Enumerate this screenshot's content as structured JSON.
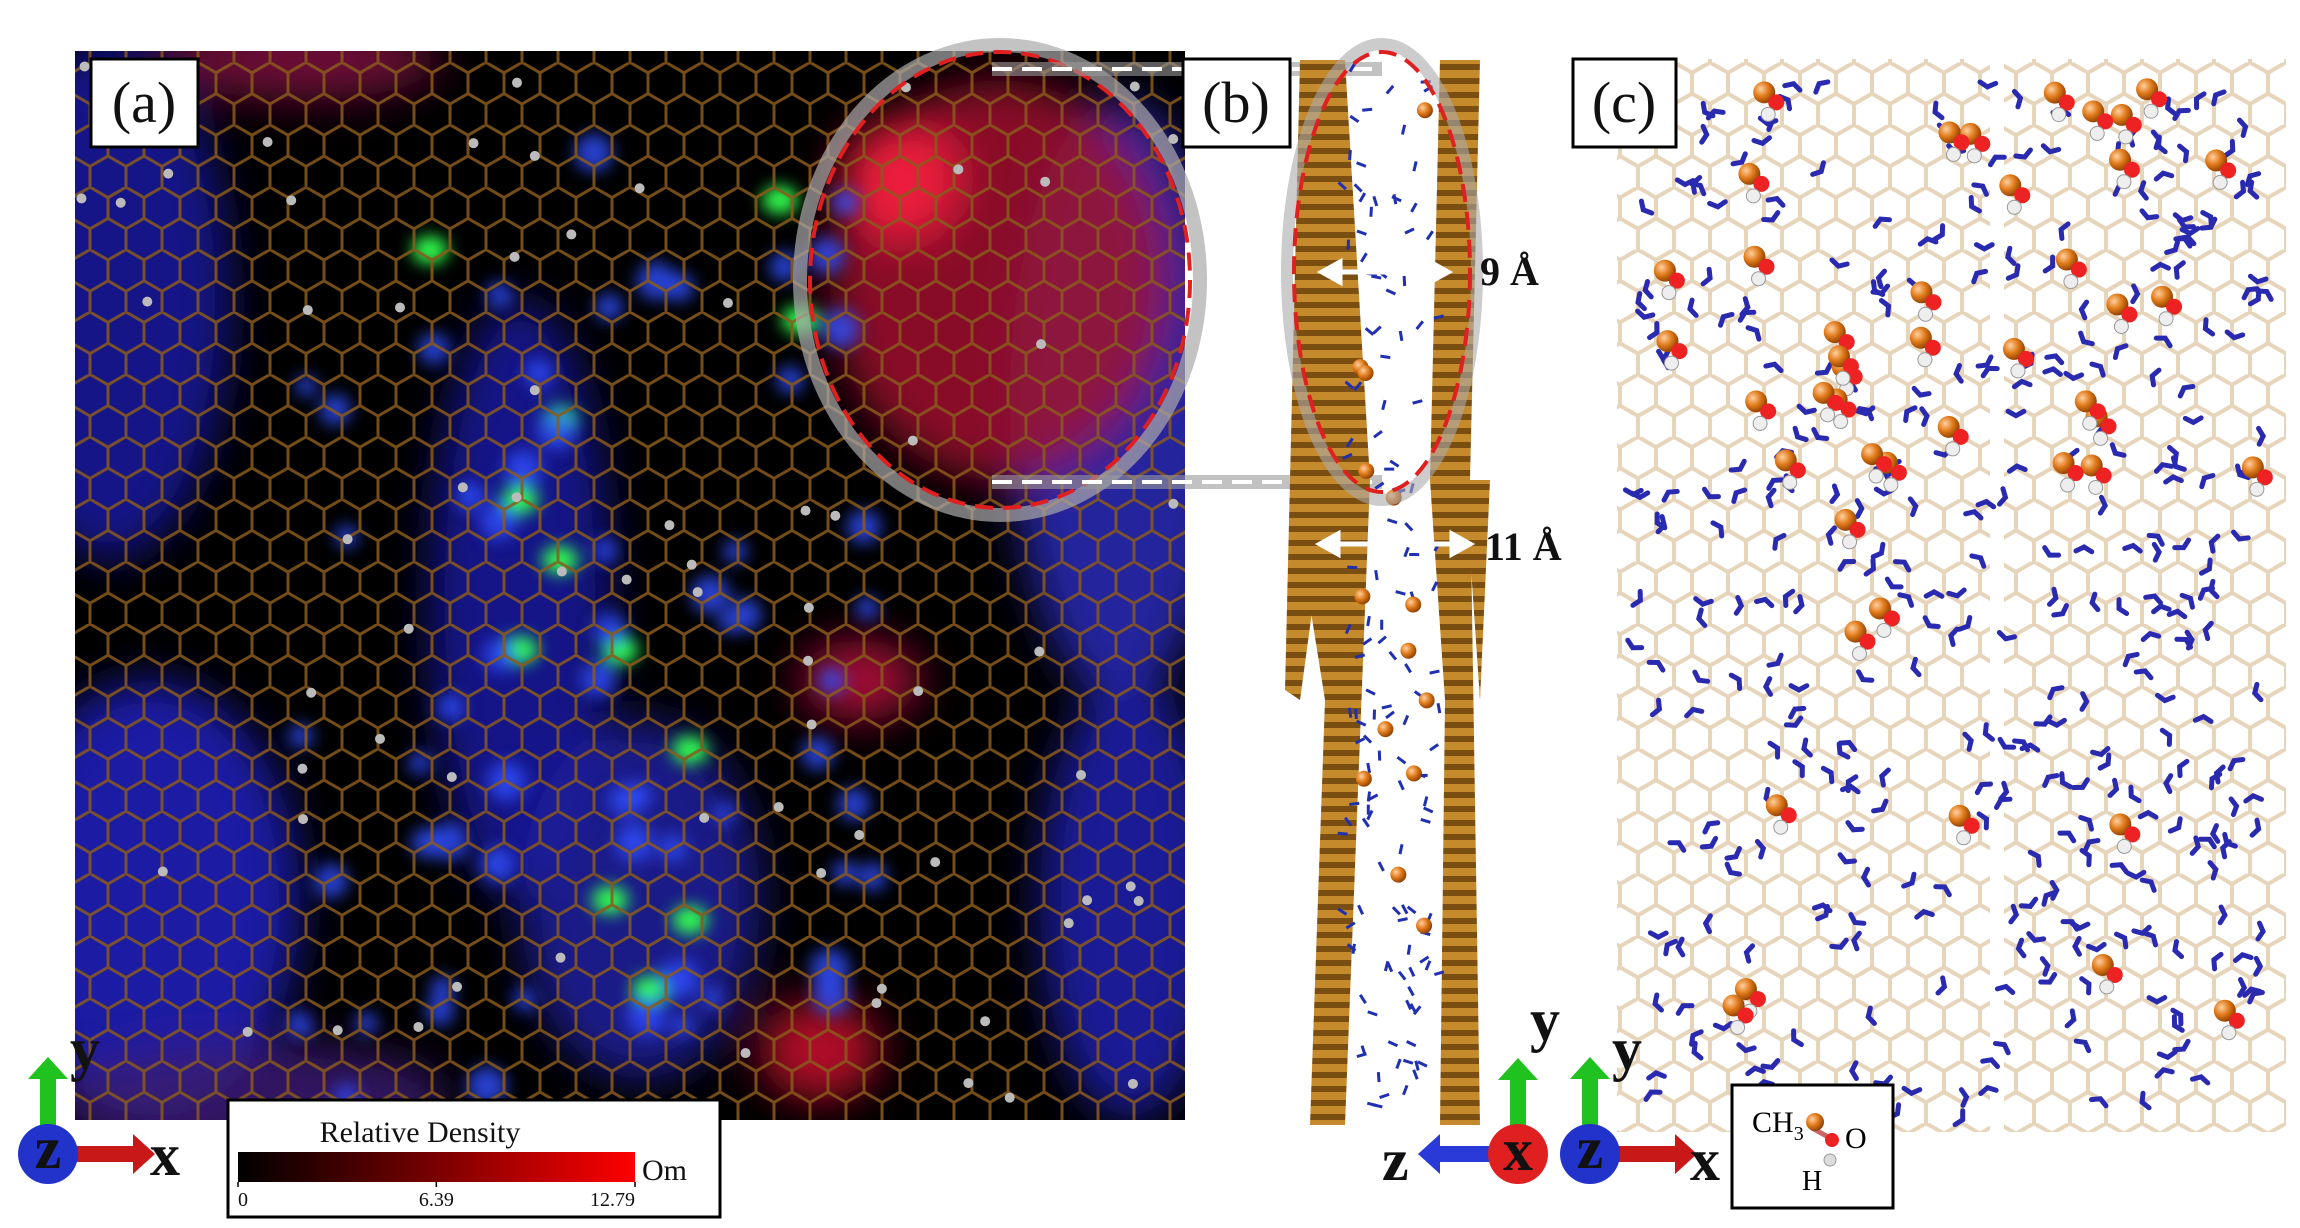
{
  "panels": [
    {
      "label": "(a)"
    },
    {
      "label": "(b)",
      "annotations": [
        "9 Å",
        "11 Å"
      ]
    },
    {
      "label": "(c)"
    }
  ],
  "colorbar": {
    "title": "Relative Density",
    "unit": "Om",
    "ticks": [
      0,
      6.39,
      12.79
    ]
  },
  "axes_a": {
    "y": "y",
    "z": "z",
    "x": "x"
  },
  "axes_b": {
    "z": "z",
    "x": "x",
    "y": "y"
  },
  "axes_c": {
    "y": "y",
    "z": "z",
    "x": "x"
  },
  "legend": {
    "carbon": "CH",
    "subscript": "3",
    "oxygen": "O",
    "hydrogen": "H"
  }
}
